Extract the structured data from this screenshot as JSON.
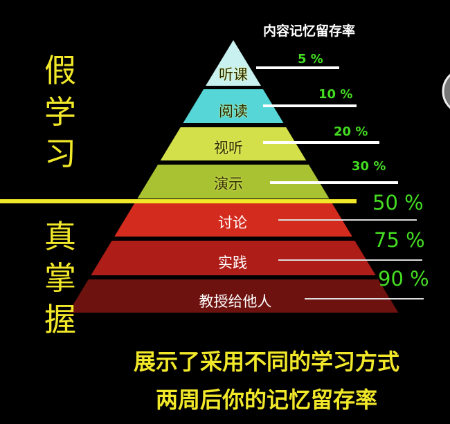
{
  "header": {
    "title": "内容记忆留存率"
  },
  "side_labels": {
    "top": [
      "假",
      "学",
      "习"
    ],
    "bottom": [
      "真",
      "掌",
      "握"
    ]
  },
  "layers": [
    {
      "label": "听课",
      "retention": "5 %",
      "color": "#c9f1ef"
    },
    {
      "label": "阅读",
      "retention": "10 %",
      "color": "#56d6d6"
    },
    {
      "label": "视听",
      "retention": "20 %",
      "color": "#d3e04a"
    },
    {
      "label": "演示",
      "retention": "30 %",
      "color": "#a9c232"
    },
    {
      "label": "讨论",
      "retention": "50 %",
      "color": "#d42b1f"
    },
    {
      "label": "实践",
      "retention": "75 %",
      "color": "#ae1d17"
    },
    {
      "label": "教授给他人",
      "retention": "90 %",
      "color": "#6e1210"
    }
  ],
  "divider_color": "#f2e82a",
  "caption": [
    "展示了采用不同的学习方式",
    "两周后你的记忆留存率"
  ]
}
